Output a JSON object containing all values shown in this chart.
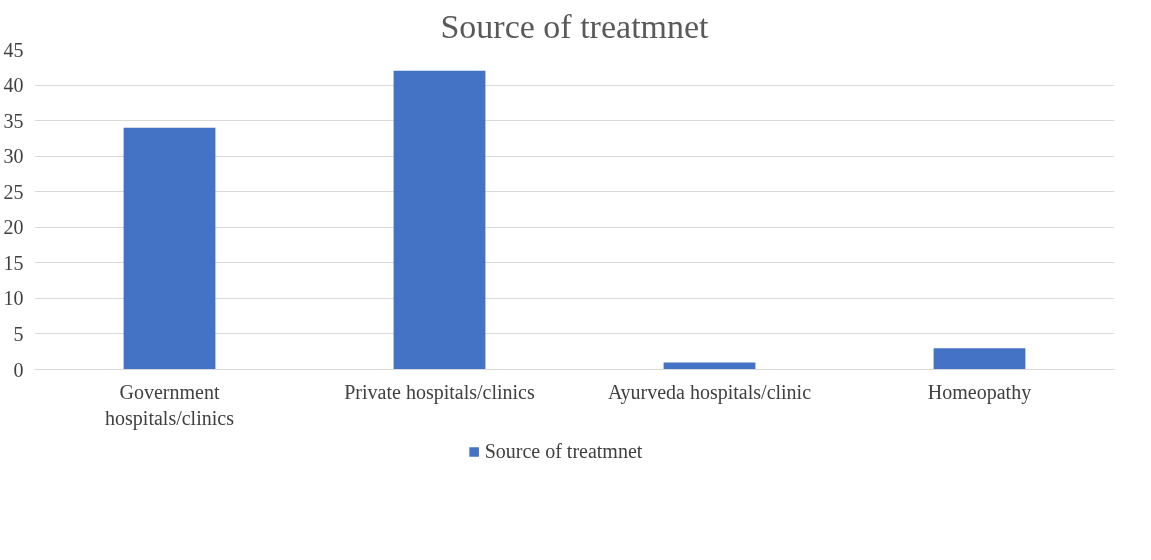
{
  "chart_data": {
    "type": "bar",
    "title": "Source of treatmnet",
    "categories": [
      "Government hospitals/clinics",
      "Private hospitals/clinics",
      "Ayurveda hospitals/clinic",
      "Homeopathy"
    ],
    "series": [
      {
        "name": "Source of treatmnet",
        "color": "#4472c4",
        "values": [
          34,
          42,
          1,
          3
        ]
      }
    ],
    "ylim": [
      0,
      45
    ],
    "yticks": [
      0,
      5,
      10,
      15,
      20,
      25,
      30,
      35,
      40,
      45
    ],
    "grid": "y",
    "legend": "bottom"
  }
}
